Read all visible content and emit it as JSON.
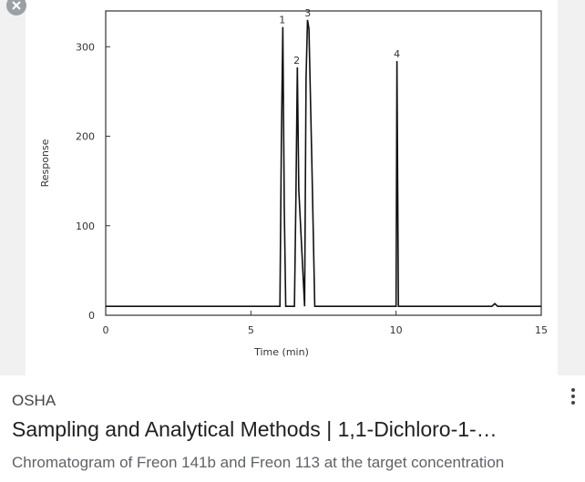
{
  "chart_data": {
    "type": "line",
    "x_label": "Time (min)",
    "y_label": "Response",
    "x": [
      0,
      6.0,
      6.05,
      6.1,
      6.15,
      6.2,
      6.5,
      6.55,
      6.6,
      6.65,
      6.85,
      6.9,
      6.95,
      7.0,
      7.1,
      7.2,
      10.0,
      10.03,
      10.08,
      13.3,
      13.4,
      13.5,
      15
    ],
    "values": [
      10,
      10,
      195,
      322,
      120,
      10,
      10,
      130,
      277,
      140,
      10,
      265,
      330,
      320,
      170,
      10,
      10,
      284,
      10,
      10,
      13,
      10,
      10
    ],
    "color": "#111111",
    "xlim": [
      0,
      15
    ],
    "xticks": [
      0,
      5,
      10,
      15
    ],
    "ylim": [
      0,
      340
    ],
    "yticks": [
      0,
      100,
      200,
      300
    ],
    "annotations": [
      {
        "text": "1",
        "x": 6.08,
        "y": 322
      },
      {
        "text": "2",
        "x": 6.58,
        "y": 277
      },
      {
        "text": "3",
        "x": 6.96,
        "y": 330
      },
      {
        "text": "4",
        "x": 10.03,
        "y": 284
      }
    ]
  },
  "result": {
    "source": "OSHA",
    "title": "Sampling and Analytical Methods | 1,1-Dichloro-1-…",
    "description": "Chromatogram of Freon 141b and Freon 113 at the target concentration"
  }
}
